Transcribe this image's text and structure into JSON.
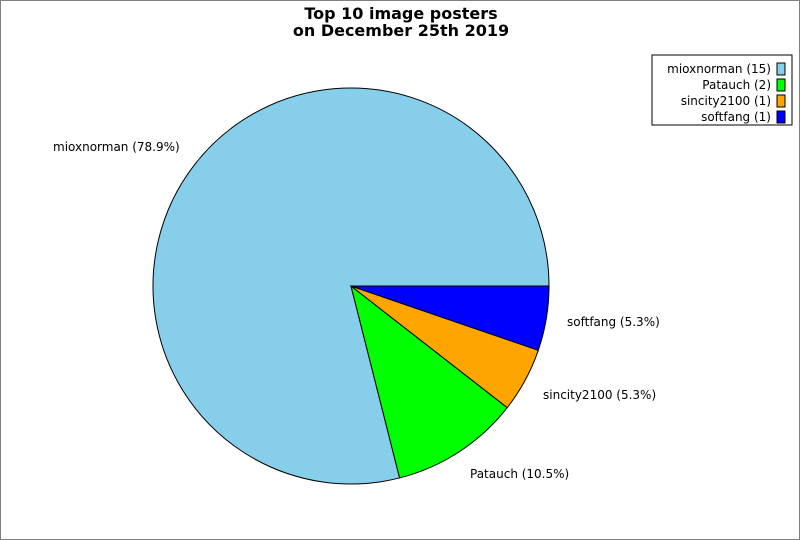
{
  "chart_data": {
    "type": "pie",
    "title_lines": [
      "Top 10 image posters",
      "on December 25th 2019"
    ],
    "slices": [
      {
        "name": "mioxnorman",
        "value": 15,
        "percent_label": "mioxnorman (78.9%)",
        "legend_label": "mioxnorman (15)",
        "color": "#87CEEB"
      },
      {
        "name": "Patauch",
        "value": 2,
        "percent_label": "Patauch (10.5%)",
        "legend_label": "Patauch (2)",
        "color": "#00FF00"
      },
      {
        "name": "sincity2100",
        "value": 1,
        "percent_label": "sincity2100 (5.3%)",
        "legend_label": "sincity2100 (1)",
        "color": "#FFA500"
      },
      {
        "name": "softfang",
        "value": 1,
        "percent_label": "softfang (5.3%)",
        "legend_label": "softfang (1)",
        "color": "#0000FF"
      }
    ],
    "legend_position": "top-right"
  }
}
